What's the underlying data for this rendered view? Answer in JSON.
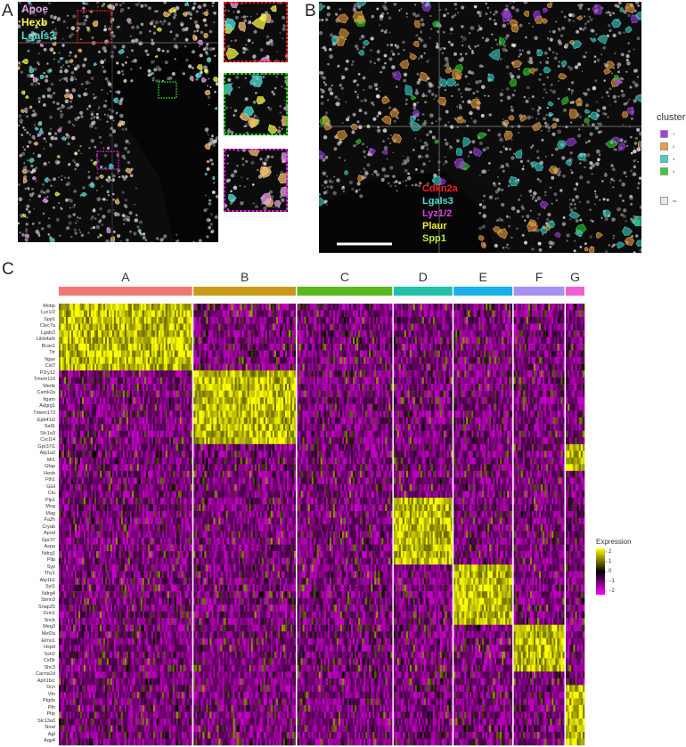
{
  "panels": {
    "a": "A",
    "b": "B",
    "c": "C"
  },
  "panel_a": {
    "markers": [
      {
        "name": "Apoe",
        "color": "#e8a0e8"
      },
      {
        "name": "Hexb",
        "color": "#f2f24a"
      },
      {
        "name": "Lgals3",
        "color": "#4fe0d8"
      }
    ],
    "inset_colors": [
      "#e02020",
      "#20d020",
      "#d020d0"
    ]
  },
  "panel_b": {
    "markers": [
      {
        "name": "Cdkn2a",
        "color": "#ff2020"
      },
      {
        "name": "Lgals3",
        "color": "#4fe0d8"
      },
      {
        "name": "Lyz1/2",
        "color": "#e040e0"
      },
      {
        "name": "Plaur",
        "color": "#f2f230"
      },
      {
        "name": "Spp1",
        "color": "#b8f040"
      }
    ],
    "legend": {
      "title": "cluster",
      "items": [
        {
          "label": "1",
          "color": "#a040e0"
        },
        {
          "label": "2",
          "color": "#e8a040"
        },
        {
          "label": "3",
          "color": "#40d0c8"
        },
        {
          "label": "4",
          "color": "#30d030"
        },
        {
          "label": "ns",
          "color": "#e8e8e8"
        }
      ]
    }
  },
  "chart_data": {
    "type": "heatmap",
    "groups": [
      {
        "name": "A",
        "color": "#f07870",
        "weight": 150
      },
      {
        "name": "B",
        "color": "#c89a18",
        "weight": 115
      },
      {
        "name": "C",
        "color": "#5ab820",
        "weight": 107
      },
      {
        "name": "D",
        "color": "#20c0a8",
        "weight": 66
      },
      {
        "name": "E",
        "color": "#18b0e8",
        "weight": 66
      },
      {
        "name": "F",
        "color": "#a890f0",
        "weight": 57
      },
      {
        "name": "G",
        "color": "#f060d0",
        "weight": 21
      }
    ],
    "genes": [
      "Mobp",
      "Lyz1/2",
      "Spp1",
      "Clec7a",
      "Lgals3",
      "Lilrb4a/b",
      "Bcas1",
      "Ttr",
      "Itgax",
      "Cst7",
      "P2ry12",
      "Tmem119",
      "Mertk",
      "Camk2a",
      "Itgam",
      "Adgrg1",
      "Tmem173",
      "Epb41l2",
      "Sall1",
      "Slc1a3",
      "Cxcl14",
      "Gpr37l1",
      "Atp1a2",
      "Mt1",
      "Gfap",
      "Hexb",
      "Fth1",
      "Glul",
      "Clu",
      "Plp1",
      "Mog",
      "Mag",
      "Fa2h",
      "Cryab",
      "Apod",
      "Gpr37",
      "Aspa",
      "Ndrg1",
      "Pllp",
      "Syp",
      "Thy1",
      "Atp1b1",
      "Syt1",
      "Ndrg4",
      "Stmn3",
      "Snap25",
      "Grin1",
      "Sncb",
      "Meg3",
      "Mef2a",
      "Elmo1",
      "Hspd",
      "Ssh2",
      "Csf3r",
      "Shc3",
      "Cacna1d",
      "Aph1b/c",
      "Dcn",
      "Vtn",
      "Ptgds",
      "Pth",
      "Pltp",
      "Slc13a3",
      "Nnat",
      "Agt",
      "Aqp4"
    ],
    "high_blocks": [
      {
        "group": "A",
        "genes": [
          "Mobp",
          "Lyz1/2",
          "Spp1",
          "Clec7a",
          "Lgals3",
          "Lilrb4a/b",
          "Bcas1",
          "Ttr",
          "Itgax",
          "Cst7"
        ]
      },
      {
        "group": "B",
        "genes": [
          "P2ry12",
          "Tmem119",
          "Mertk",
          "Camk2a",
          "Itgam",
          "Adgrg1",
          "Tmem173",
          "Epb41l2",
          "Sall1",
          "Slc1a3",
          "Cxcl14"
        ]
      },
      {
        "group": "D",
        "genes": [
          "Plp1",
          "Mog",
          "Mag",
          "Fa2h",
          "Cryab",
          "Apod",
          "Gpr37",
          "Aspa",
          "Ndrg1",
          "Pllp"
        ]
      },
      {
        "group": "E",
        "genes": [
          "Syp",
          "Thy1",
          "Atp1b1",
          "Syt1",
          "Ndrg4",
          "Stmn3",
          "Snap25",
          "Grin1",
          "Sncb"
        ]
      },
      {
        "group": "F",
        "genes": [
          "Meg3",
          "Mef2a",
          "Elmo1",
          "Hspd",
          "Ssh2",
          "Csf3r",
          "Shc3"
        ]
      },
      {
        "group": "G",
        "genes": [
          "Gpr37l1",
          "Atp1a2",
          "Mt1",
          "Gfap",
          "Dcn",
          "Vtn",
          "Ptgds",
          "Pth",
          "Pltp",
          "Slc13a3",
          "Nnat",
          "Agt",
          "Aqp4"
        ]
      }
    ],
    "colorbar": {
      "title": "Expression",
      "ticks": [
        "2",
        "1",
        "0",
        "−1",
        "−2"
      ],
      "range": [
        -2,
        2
      ],
      "colors": [
        "#ff00ff",
        "#000000",
        "#ffff00"
      ]
    }
  }
}
